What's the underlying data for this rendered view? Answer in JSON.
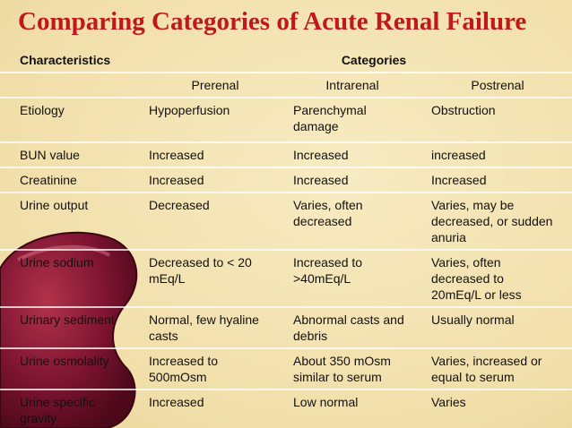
{
  "title": "Comparing Categories of Acute Renal Failure",
  "table": {
    "header": [
      "Characteristics",
      "Categories"
    ],
    "subheader": [
      "Prerenal",
      "Intrarenal",
      "Postrenal"
    ],
    "rows": [
      [
        "Etiology",
        "Hypoperfusion",
        "Parenchymal damage",
        "Obstruction"
      ],
      [
        "BUN value",
        "Increased",
        "Increased",
        "increased"
      ],
      [
        "Creatinine",
        "Increased",
        "Increased",
        "Increased"
      ],
      [
        "Urine output",
        "Decreased",
        "Varies, often decreased",
        "Varies, may be decreased, or sudden anuria"
      ],
      [
        "Urine sodium",
        "Decreased to < 20 mEq/L",
        "Increased to >40mEq/L",
        "Varies, often decreased to 20mEq/L or less"
      ],
      [
        "Urinary sediment",
        "Normal, few hyaline casts",
        "Abnormal casts and debris",
        "Usually normal"
      ],
      [
        "Urine osmolality",
        "Increased to 500mOsm",
        "About 350 mOsm similar to serum",
        "Varies, increased or equal to serum"
      ],
      [
        "Urine specific gravity",
        "Increased",
        "Low normal",
        "Varies"
      ]
    ]
  }
}
